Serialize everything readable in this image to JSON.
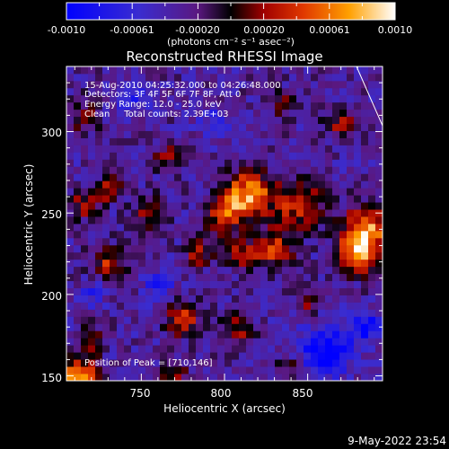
{
  "colorbar": {
    "ticks": [
      "-0.0010",
      "-0.00061",
      "-0.00020",
      "0.00020",
      "0.00061",
      "0.0010"
    ],
    "label": "(photons cm⁻² s⁻¹ asec⁻²)"
  },
  "info": {
    "time": "15-Aug-2010 04:25:32.000 to 04:26:48.000",
    "detectors": "Detectors: 3F 4F 5F 6F 7F 8F, Att 0",
    "energy": "Energy Range: 12.0 - 25.0 keV",
    "clean": "Clean     Total counts: 2.39E+03",
    "peak": "Position of Peak = [710,146]"
  },
  "footer": {
    "date": "9-May-2022 23:54"
  },
  "chart_data": {
    "type": "heatmap",
    "title": "Reconstructed RHESSI Image",
    "xlabel": "Heliocentric X (arcsec)",
    "ylabel": "Heliocentric Y (arcsec)",
    "xlim": [
      705,
      895
    ],
    "ylim": [
      147,
      340
    ],
    "xticks": [
      750,
      800,
      850
    ],
    "yticks": [
      150,
      200,
      250,
      300
    ],
    "colorbar_range": [
      -0.001,
      0.001
    ],
    "peak_position": [
      710,
      146
    ],
    "blobs": [
      {
        "x": 815,
        "y": 262,
        "amp": 1.0,
        "r": 14
      },
      {
        "x": 800,
        "y": 250,
        "amp": 0.75,
        "r": 12
      },
      {
        "x": 845,
        "y": 255,
        "amp": 0.7,
        "r": 14
      },
      {
        "x": 885,
        "y": 240,
        "amp": 0.95,
        "r": 14
      },
      {
        "x": 880,
        "y": 225,
        "amp": 0.85,
        "r": 12
      },
      {
        "x": 830,
        "y": 228,
        "amp": 0.7,
        "r": 12
      },
      {
        "x": 810,
        "y": 225,
        "amp": 0.6,
        "r": 9
      },
      {
        "x": 785,
        "y": 225,
        "amp": 0.55,
        "r": 8
      },
      {
        "x": 730,
        "y": 265,
        "amp": 0.55,
        "r": 8
      },
      {
        "x": 715,
        "y": 255,
        "amp": 0.5,
        "r": 9
      },
      {
        "x": 755,
        "y": 250,
        "amp": 0.45,
        "r": 10
      },
      {
        "x": 730,
        "y": 220,
        "amp": 0.6,
        "r": 10
      },
      {
        "x": 765,
        "y": 285,
        "amp": 0.45,
        "r": 8
      },
      {
        "x": 870,
        "y": 305,
        "amp": 0.5,
        "r": 10
      },
      {
        "x": 835,
        "y": 318,
        "amp": 0.45,
        "r": 8
      },
      {
        "x": 715,
        "y": 310,
        "amp": 0.4,
        "r": 10
      },
      {
        "x": 712,
        "y": 150,
        "amp": 1.05,
        "r": 11
      },
      {
        "x": 720,
        "y": 172,
        "amp": 0.55,
        "r": 8
      },
      {
        "x": 775,
        "y": 185,
        "amp": 0.7,
        "r": 10
      },
      {
        "x": 808,
        "y": 180,
        "amp": 0.55,
        "r": 9
      },
      {
        "x": 850,
        "y": 195,
        "amp": 0.4,
        "r": 8
      },
      {
        "x": 770,
        "y": 150,
        "amp": 0.5,
        "r": 8
      },
      {
        "x": 840,
        "y": 155,
        "amp": 0.35,
        "r": 8
      },
      {
        "x": 860,
        "y": 165,
        "amp": -0.75,
        "r": 15
      },
      {
        "x": 885,
        "y": 180,
        "amp": -0.6,
        "r": 10
      },
      {
        "x": 795,
        "y": 305,
        "amp": -0.35,
        "r": 10
      },
      {
        "x": 745,
        "y": 320,
        "amp": -0.4,
        "r": 10
      },
      {
        "x": 760,
        "y": 205,
        "amp": -0.4,
        "r": 9
      },
      {
        "x": 720,
        "y": 200,
        "amp": -0.3,
        "r": 8
      }
    ]
  }
}
